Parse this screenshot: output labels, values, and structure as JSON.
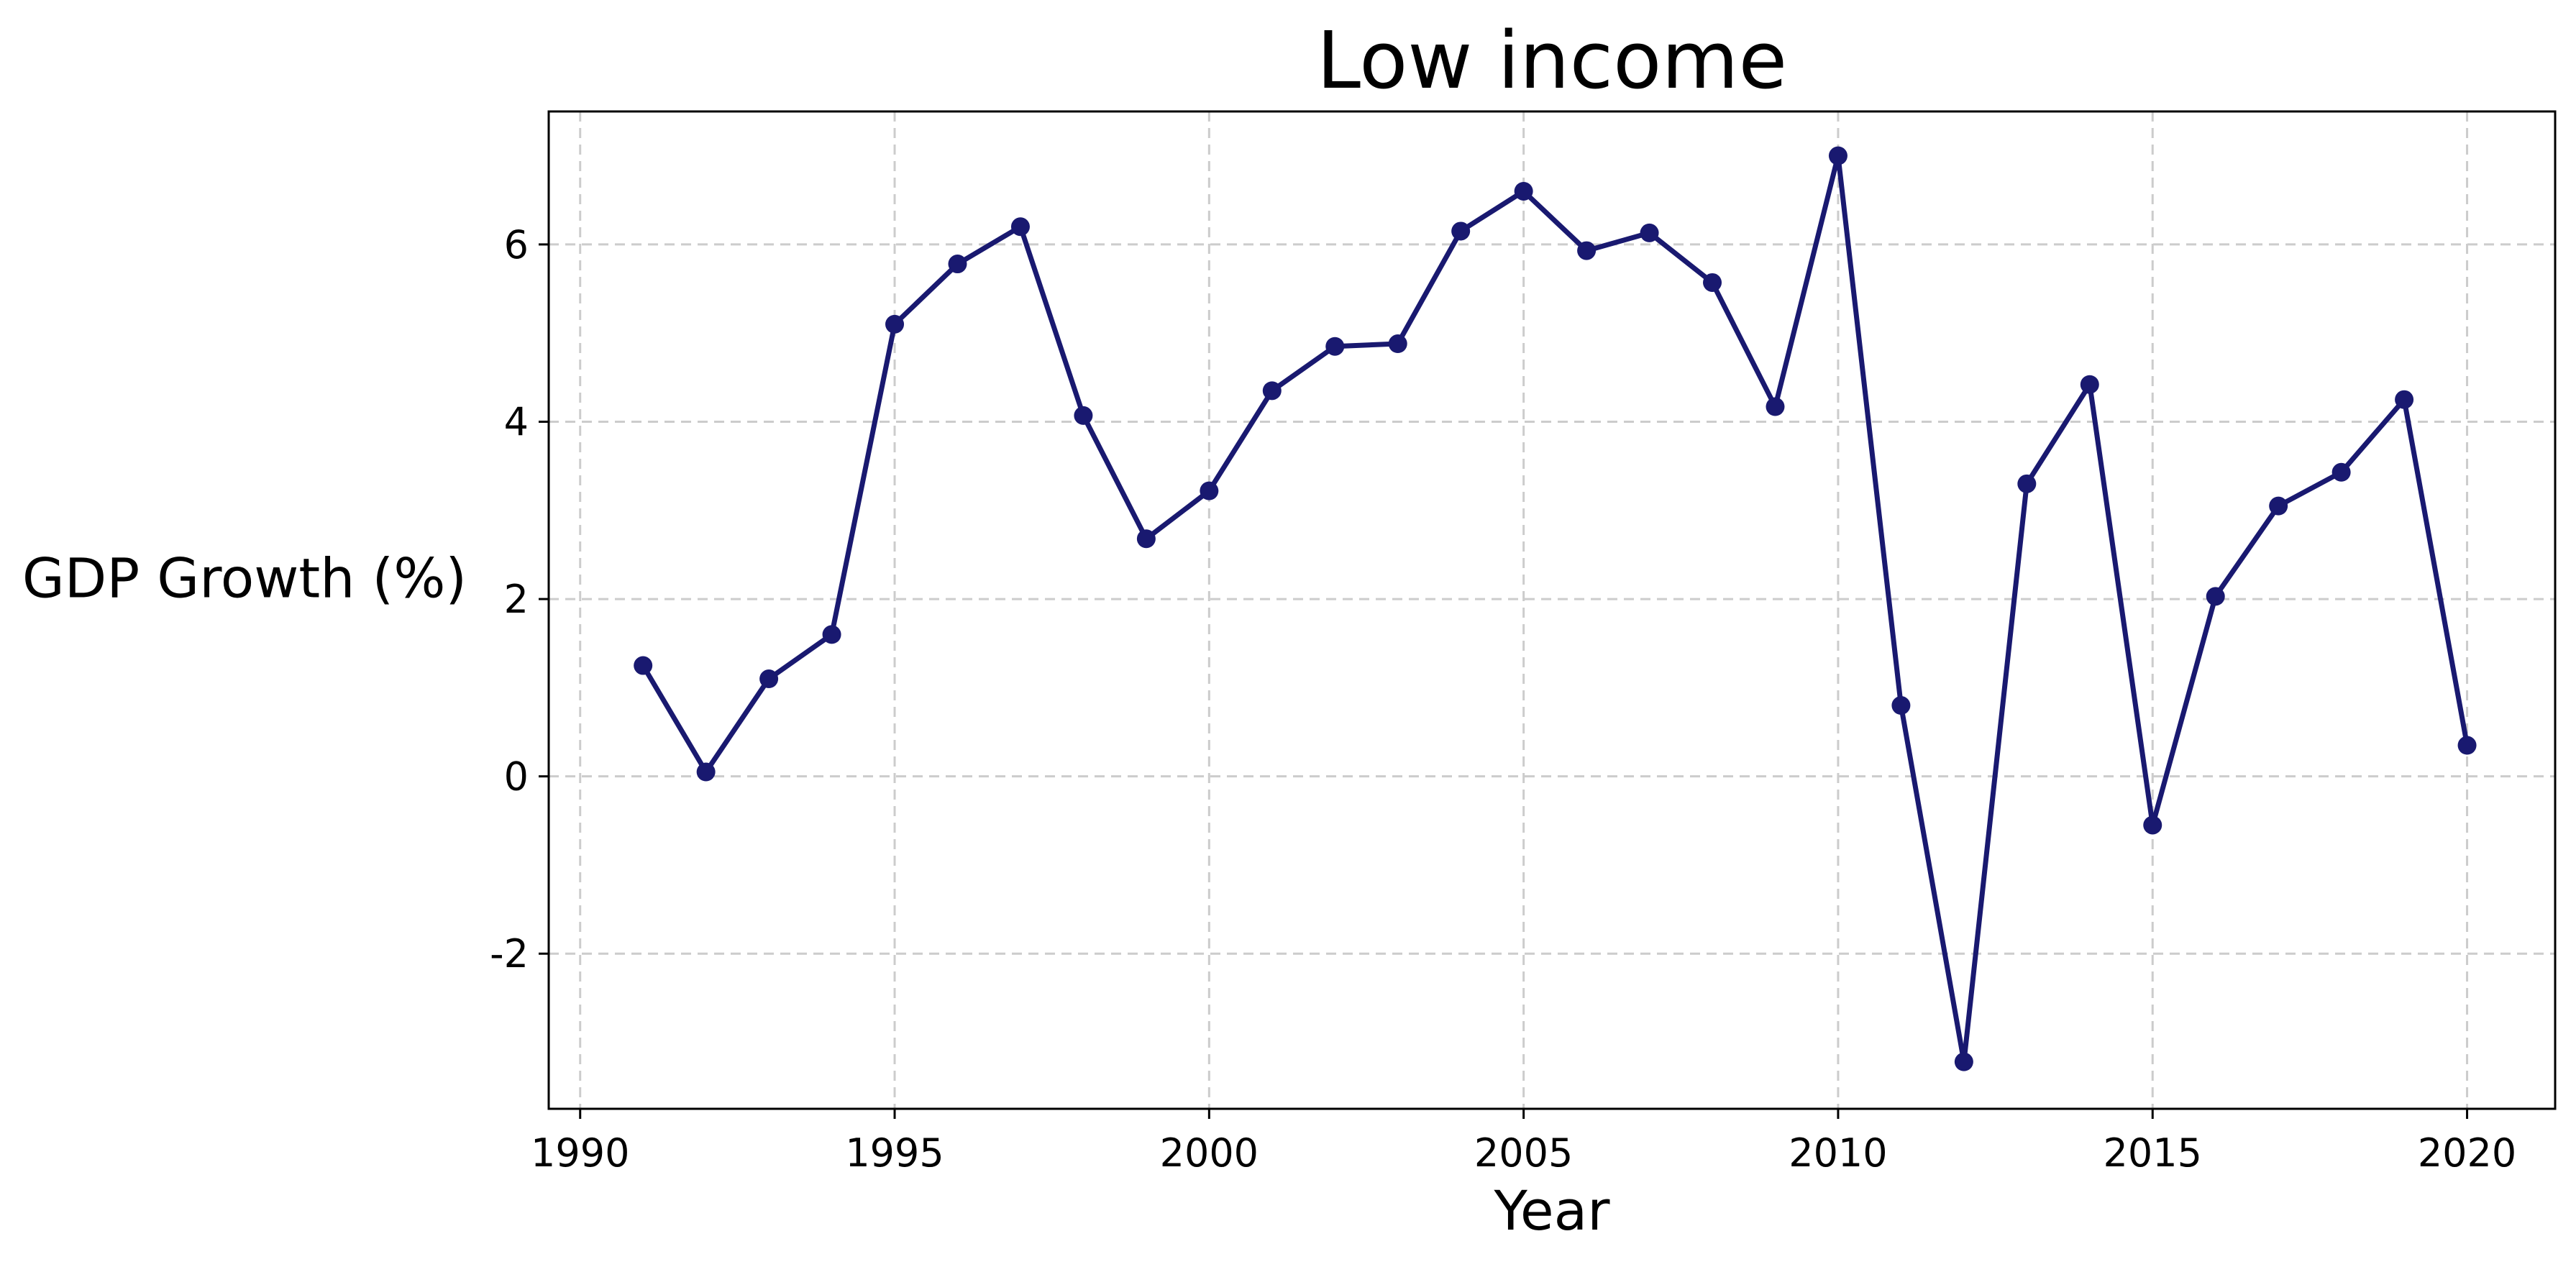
{
  "chart_data": {
    "type": "line",
    "title": "Low income",
    "xlabel": "Year",
    "ylabel": "GDP Growth (%)",
    "xlim": [
      1989.5,
      2021.4
    ],
    "ylim": [
      -3.75,
      7.5
    ],
    "xticks": [
      1990,
      1995,
      2000,
      2005,
      2010,
      2015,
      2020
    ],
    "yticks": [
      -2,
      0,
      2,
      4,
      6
    ],
    "ytick_labels": [
      "-2",
      "0",
      "2",
      "4",
      "6"
    ],
    "grid": true,
    "legend": "none",
    "series": [
      {
        "color": "#191970",
        "marker": "circle",
        "x": [
          1991,
          1992,
          1993,
          1994,
          1995,
          1996,
          1997,
          1998,
          1999,
          2000,
          2001,
          2002,
          2003,
          2004,
          2005,
          2006,
          2007,
          2008,
          2009,
          2010,
          2011,
          2012,
          2013,
          2014,
          2015,
          2016,
          2017,
          2018,
          2019,
          2020
        ],
        "y": [
          1.25,
          0.05,
          1.1,
          1.6,
          5.1,
          5.78,
          6.2,
          4.07,
          2.68,
          3.22,
          4.35,
          4.85,
          4.88,
          6.15,
          6.6,
          5.93,
          6.13,
          5.57,
          4.17,
          7.0,
          0.8,
          -3.22,
          3.3,
          4.42,
          -0.55,
          2.03,
          3.05,
          3.43,
          4.25,
          0.35
        ]
      }
    ]
  }
}
